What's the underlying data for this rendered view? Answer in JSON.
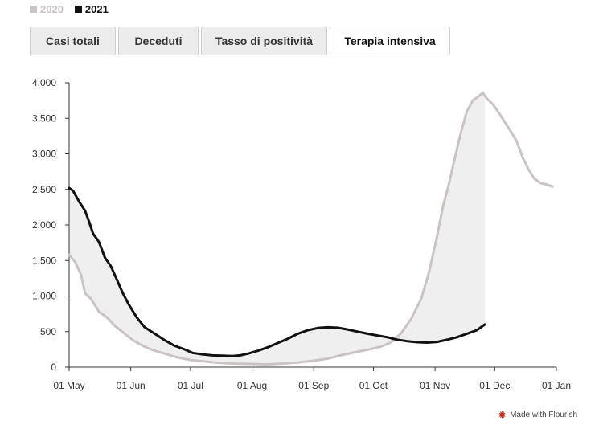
{
  "legend": [
    {
      "label": "2020",
      "color": "#c9c3c3"
    },
    {
      "label": "2021",
      "color": "#111111"
    }
  ],
  "tabs": [
    {
      "label": "Casi totali",
      "active": false
    },
    {
      "label": "Deceduti",
      "active": false
    },
    {
      "label": "Tasso di positività",
      "active": false
    },
    {
      "label": "Terapia intensiva",
      "active": true
    }
  ],
  "footer": {
    "credit": "Made with Flourish",
    "icon": "flourish-star-icon"
  },
  "chart_data": {
    "type": "line",
    "title": "",
    "xlabel": "",
    "ylabel": "",
    "x_range": [
      "2021-05-01",
      "2022-01-01"
    ],
    "ylim": [
      0,
      4000
    ],
    "y_ticks": [
      0,
      500,
      1000,
      1500,
      2000,
      2500,
      3000,
      3500,
      4000
    ],
    "y_tick_labels": [
      "0",
      "500",
      "1.000",
      "1.500",
      "2.000",
      "2.500",
      "3.000",
      "3.500",
      "4.000"
    ],
    "x_ticks": [
      "2021-05-01",
      "2021-06-01",
      "2021-07-01",
      "2021-08-01",
      "2021-09-01",
      "2021-10-01",
      "2021-11-01",
      "2021-12-01",
      "2022-01-01"
    ],
    "x_tick_labels": [
      "01 May",
      "01 Jun",
      "01 Jul",
      "01 Aug",
      "01 Sep",
      "01 Oct",
      "01 Nov",
      "01 Dec",
      "01 Jan"
    ],
    "grid": false,
    "legend_position": "top-left",
    "fill_between": true,
    "series": [
      {
        "name": "2020",
        "color": "#c9c3c3",
        "points": [
          [
            "2021-05-01",
            1580
          ],
          [
            "2021-05-04",
            1480
          ],
          [
            "2021-05-07",
            1300
          ],
          [
            "2021-05-09",
            1040
          ],
          [
            "2021-05-12",
            960
          ],
          [
            "2021-05-16",
            780
          ],
          [
            "2021-05-20",
            700
          ],
          [
            "2021-05-24",
            580
          ],
          [
            "2021-05-29",
            470
          ],
          [
            "2021-06-02",
            380
          ],
          [
            "2021-06-07",
            300
          ],
          [
            "2021-06-12",
            240
          ],
          [
            "2021-06-18",
            190
          ],
          [
            "2021-06-24",
            140
          ],
          [
            "2021-07-01",
            100
          ],
          [
            "2021-07-08",
            80
          ],
          [
            "2021-07-16",
            60
          ],
          [
            "2021-07-24",
            50
          ],
          [
            "2021-08-01",
            45
          ],
          [
            "2021-08-08",
            40
          ],
          [
            "2021-08-16",
            50
          ],
          [
            "2021-08-24",
            65
          ],
          [
            "2021-09-01",
            90
          ],
          [
            "2021-09-08",
            120
          ],
          [
            "2021-09-15",
            170
          ],
          [
            "2021-09-22",
            210
          ],
          [
            "2021-09-29",
            250
          ],
          [
            "2021-10-05",
            290
          ],
          [
            "2021-10-10",
            350
          ],
          [
            "2021-10-15",
            480
          ],
          [
            "2021-10-20",
            680
          ],
          [
            "2021-10-25",
            960
          ],
          [
            "2021-10-29",
            1340
          ],
          [
            "2021-11-02",
            1840
          ],
          [
            "2021-11-05",
            2260
          ],
          [
            "2021-11-08",
            2580
          ],
          [
            "2021-11-11",
            2950
          ],
          [
            "2021-11-14",
            3300
          ],
          [
            "2021-11-17",
            3600
          ],
          [
            "2021-11-20",
            3750
          ],
          [
            "2021-11-23",
            3810
          ],
          [
            "2021-11-25",
            3860
          ],
          [
            "2021-11-27",
            3780
          ],
          [
            "2021-11-30",
            3700
          ],
          [
            "2021-12-03",
            3580
          ],
          [
            "2021-12-06",
            3450
          ],
          [
            "2021-12-09",
            3320
          ],
          [
            "2021-12-12",
            3180
          ],
          [
            "2021-12-15",
            2950
          ],
          [
            "2021-12-18",
            2780
          ],
          [
            "2021-12-21",
            2650
          ],
          [
            "2021-12-24",
            2590
          ],
          [
            "2021-12-27",
            2570
          ],
          [
            "2021-12-30",
            2540
          ]
        ]
      },
      {
        "name": "2021",
        "color": "#111111",
        "points": [
          [
            "2021-05-01",
            2520
          ],
          [
            "2021-05-03",
            2480
          ],
          [
            "2021-05-06",
            2330
          ],
          [
            "2021-05-09",
            2200
          ],
          [
            "2021-05-11",
            2050
          ],
          [
            "2021-05-13",
            1880
          ],
          [
            "2021-05-16",
            1760
          ],
          [
            "2021-05-19",
            1540
          ],
          [
            "2021-05-22",
            1420
          ],
          [
            "2021-05-25",
            1230
          ],
          [
            "2021-05-28",
            1040
          ],
          [
            "2021-05-31",
            880
          ],
          [
            "2021-06-04",
            700
          ],
          [
            "2021-06-08",
            560
          ],
          [
            "2021-06-13",
            470
          ],
          [
            "2021-06-18",
            380
          ],
          [
            "2021-06-23",
            300
          ],
          [
            "2021-06-28",
            250
          ],
          [
            "2021-07-02",
            200
          ],
          [
            "2021-07-07",
            180
          ],
          [
            "2021-07-12",
            165
          ],
          [
            "2021-07-17",
            160
          ],
          [
            "2021-07-22",
            155
          ],
          [
            "2021-07-26",
            165
          ],
          [
            "2021-07-30",
            190
          ],
          [
            "2021-08-04",
            230
          ],
          [
            "2021-08-09",
            280
          ],
          [
            "2021-08-14",
            340
          ],
          [
            "2021-08-19",
            400
          ],
          [
            "2021-08-24",
            470
          ],
          [
            "2021-08-29",
            520
          ],
          [
            "2021-09-03",
            550
          ],
          [
            "2021-09-08",
            560
          ],
          [
            "2021-09-13",
            555
          ],
          [
            "2021-09-18",
            530
          ],
          [
            "2021-09-23",
            500
          ],
          [
            "2021-09-28",
            470
          ],
          [
            "2021-10-03",
            445
          ],
          [
            "2021-10-08",
            420
          ],
          [
            "2021-10-13",
            385
          ],
          [
            "2021-10-18",
            365
          ],
          [
            "2021-10-23",
            350
          ],
          [
            "2021-10-28",
            345
          ],
          [
            "2021-11-02",
            355
          ],
          [
            "2021-11-07",
            385
          ],
          [
            "2021-11-12",
            420
          ],
          [
            "2021-11-17",
            470
          ],
          [
            "2021-11-22",
            520
          ],
          [
            "2021-11-26",
            600
          ]
        ]
      }
    ]
  }
}
